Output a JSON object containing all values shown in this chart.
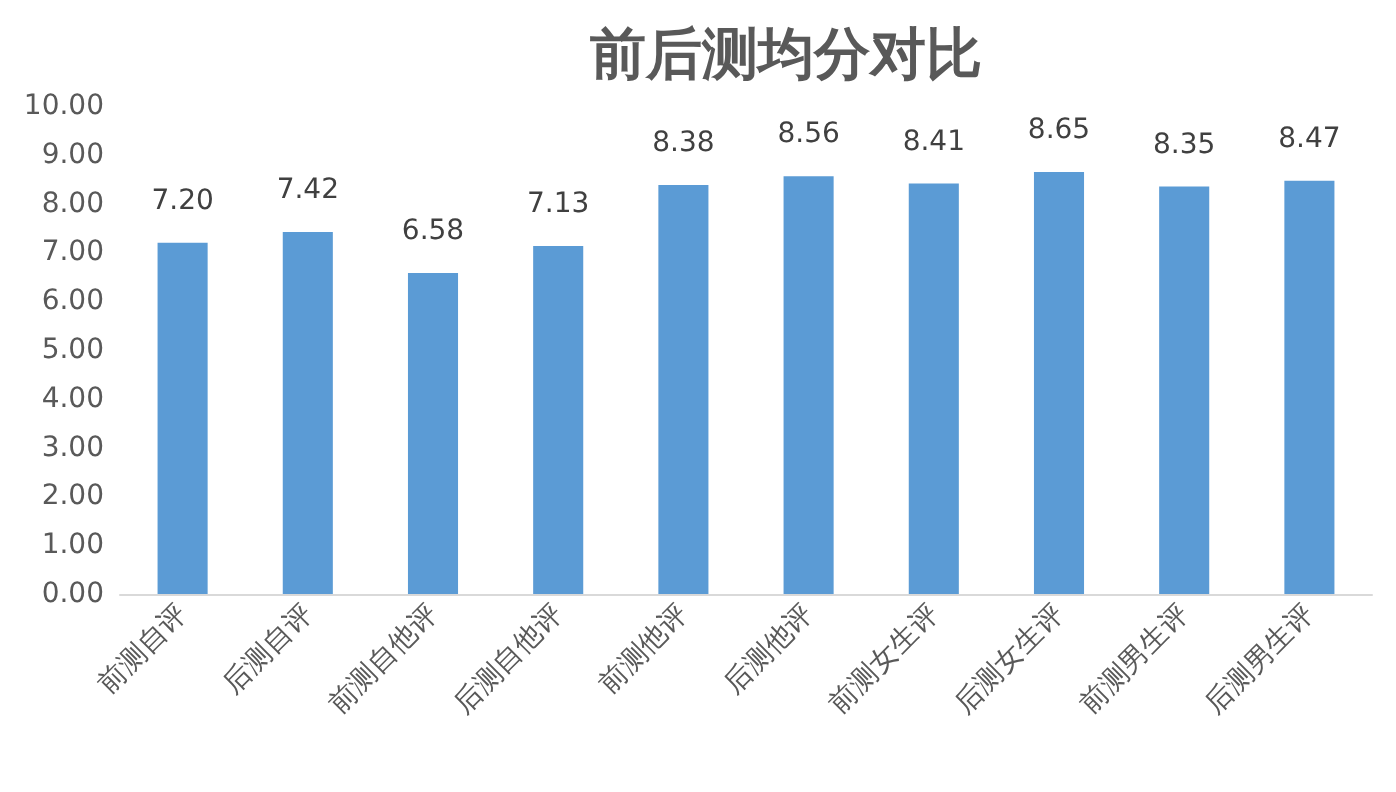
{
  "chart_data": {
    "type": "bar",
    "title": "前后测均分对比",
    "categories": [
      "前测自评",
      "后测自评",
      "前测自他评",
      "后测自他评",
      "前测他评",
      "后测他评",
      "前测女生评",
      "后测女生评",
      "前测男生评",
      "后测男生评"
    ],
    "values": [
      7.2,
      7.42,
      6.58,
      7.13,
      8.38,
      8.56,
      8.41,
      8.65,
      8.35,
      8.47
    ],
    "value_labels": [
      "7.20",
      "7.42",
      "6.58",
      "7.13",
      "8.38",
      "8.56",
      "8.41",
      "8.65",
      "8.35",
      "8.47"
    ],
    "color": "#5b9bd5",
    "ylim": [
      0,
      10
    ],
    "yticks": [
      {
        "value": 0,
        "label": "0.00"
      },
      {
        "value": 1,
        "label": "1.00"
      },
      {
        "value": 2,
        "label": "2.00"
      },
      {
        "value": 3,
        "label": "3.00"
      },
      {
        "value": 4,
        "label": "4.00"
      },
      {
        "value": 5,
        "label": "5.00"
      },
      {
        "value": 6,
        "label": "6.00"
      },
      {
        "value": 7,
        "label": "7.00"
      },
      {
        "value": 8,
        "label": "8.00"
      },
      {
        "value": 9,
        "label": "9.00"
      },
      {
        "value": 10,
        "label": "10.00"
      }
    ],
    "grid": false
  }
}
